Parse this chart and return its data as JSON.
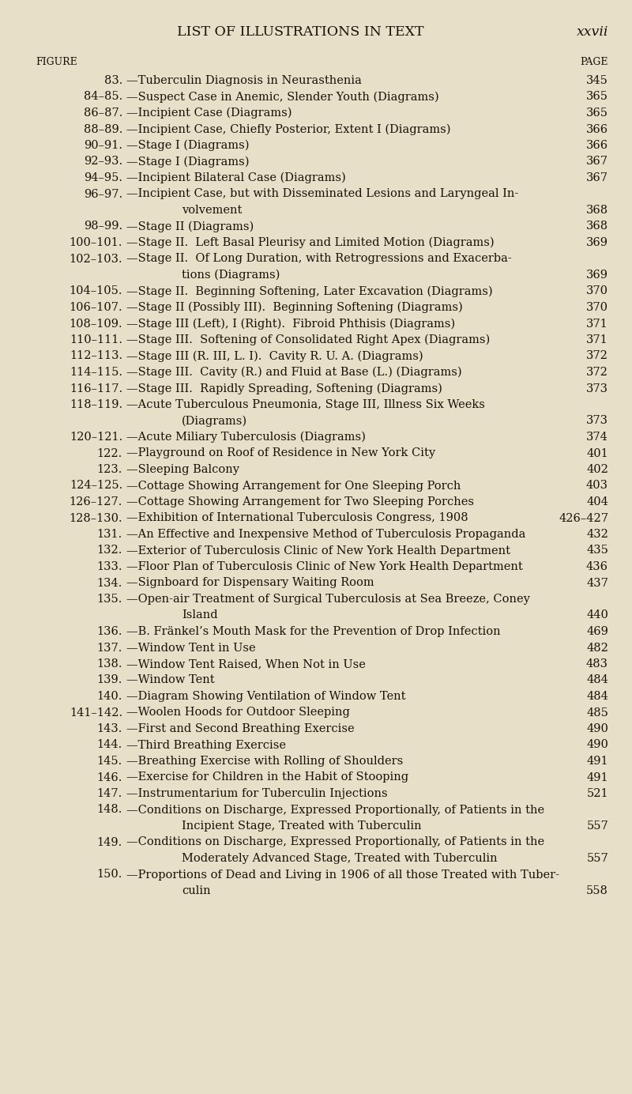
{
  "background_color": "#e8dfc8",
  "title": "LIST OF ILLUSTRATIONS IN TEXT",
  "page_num": "xxvii",
  "col_headers": [
    "FIGURE",
    "PAGE"
  ],
  "entries": [
    {
      "num": "83.",
      "text": "—Tuberculin Diagnosis in Neurasthenia",
      "page": "345",
      "wrap2": null
    },
    {
      "num": "84–85.",
      "text": "—Suspect Case in Anemic, Slender Youth (Diagrams)",
      "page": "365",
      "wrap2": null
    },
    {
      "num": "86–87.",
      "text": "—Incipient Case (Diagrams)",
      "page": "365",
      "wrap2": null
    },
    {
      "num": "88–89.",
      "text": "—Incipient Case, Chiefly Posterior, Extent I (Diagrams)",
      "page": "366",
      "wrap2": null
    },
    {
      "num": "90–91.",
      "text": "—Stage I (Diagrams)",
      "page": "366",
      "wrap2": null
    },
    {
      "num": "92–93.",
      "text": "—Stage I (Diagrams)",
      "page": "367",
      "wrap2": null
    },
    {
      "num": "94–95.",
      "text": "—Incipient Bilateral Case (Diagrams)",
      "page": "367",
      "wrap2": null
    },
    {
      "num": "96–97.",
      "text": "—Incipient Case, but with Disseminated Lesions and Laryngeal In-",
      "page": null,
      "wrap2": "volvement",
      "page2": "368"
    },
    {
      "num": "98–99.",
      "text": "—Stage II (Diagrams)",
      "page": "368",
      "wrap2": null
    },
    {
      "num": "100–101.",
      "text": "—Stage II.  Left Basal Pleurisy and Limited Motion (Diagrams)",
      "page": "369",
      "wrap2": null
    },
    {
      "num": "102–103.",
      "text": "—Stage II.  Of Long Duration, with Retrogressions and Exacerba-",
      "page": null,
      "wrap2": "tions (Diagrams)",
      "page2": "369"
    },
    {
      "num": "104–105.",
      "text": "—Stage II.  Beginning Softening, Later Excavation (Diagrams)",
      "page": "370",
      "wrap2": null
    },
    {
      "num": "106–107.",
      "text": "—Stage II (Possibly III).  Beginning Softening (Diagrams)",
      "page": "370",
      "wrap2": null
    },
    {
      "num": "108–109.",
      "text": "—Stage III (Left), I (Right).  Fibroid Phthisis (Diagrams)",
      "page": "371",
      "wrap2": null
    },
    {
      "num": "110–111.",
      "text": "—Stage III.  Softening of Consolidated Right Apex (Diagrams)",
      "page": "371",
      "wrap2": null
    },
    {
      "num": "112–113.",
      "text": "—Stage III (R. III, L. I).  Cavity R. U. A. (Diagrams)",
      "page": "372",
      "wrap2": null
    },
    {
      "num": "114–115.",
      "text": "—Stage III.  Cavity (R.) and Fluid at Base (L.) (Diagrams)",
      "page": "372",
      "wrap2": null
    },
    {
      "num": "116–117.",
      "text": "—Stage III.  Rapidly Spreading, Softening (Diagrams)",
      "page": "373",
      "wrap2": null
    },
    {
      "num": "118–119.",
      "text": "—Acute Tuberculous Pneumonia, Stage III, Illness Six Weeks",
      "page": null,
      "wrap2": "(Diagrams)",
      "page2": "373"
    },
    {
      "num": "120–121.",
      "text": "—Acute Miliary Tuberculosis (Diagrams)",
      "page": "374",
      "wrap2": null
    },
    {
      "num": "122.",
      "text": "—Playground on Roof of Residence in New York City",
      "page": "401",
      "wrap2": null
    },
    {
      "num": "123.",
      "text": "—Sleeping Balcony",
      "page": "402",
      "wrap2": null
    },
    {
      "num": "124–125.",
      "text": "—Cottage Showing Arrangement for One Sleeping Porch",
      "page": "403",
      "wrap2": null
    },
    {
      "num": "126–127.",
      "text": "—Cottage Showing Arrangement for Two Sleeping Porches",
      "page": "404",
      "wrap2": null
    },
    {
      "num": "128–130.",
      "text": "—Exhibition of International Tuberculosis Congress, 1908",
      "page": "426–427",
      "wrap2": null
    },
    {
      "num": "131.",
      "text": "—An Effective and Inexpensive Method of Tuberculosis Propaganda",
      "page": "432",
      "wrap2": null
    },
    {
      "num": "132.",
      "text": "—Exterior of Tuberculosis Clinic of New York Health Department",
      "page": "435",
      "wrap2": null
    },
    {
      "num": "133.",
      "text": "—Floor Plan of Tuberculosis Clinic of New York Health Department",
      "page": "436",
      "wrap2": null
    },
    {
      "num": "134.",
      "text": "—Signboard for Dispensary Waiting Room",
      "page": "437",
      "wrap2": null
    },
    {
      "num": "135.",
      "text": "—Open-air Treatment of Surgical Tuberculosis at Sea Breeze, Coney",
      "page": null,
      "wrap2": "Island",
      "page2": "440"
    },
    {
      "num": "136.",
      "text": "—B. Fränkel’s Mouth Mask for the Prevention of Drop Infection",
      "page": "469",
      "wrap2": null
    },
    {
      "num": "137.",
      "text": "—Window Tent in Use",
      "page": "482",
      "wrap2": null
    },
    {
      "num": "138.",
      "text": "—Window Tent Raised, When Not in Use",
      "page": "483",
      "wrap2": null
    },
    {
      "num": "139.",
      "text": "—Window Tent",
      "page": "484",
      "wrap2": null
    },
    {
      "num": "140.",
      "text": "—Diagram Showing Ventilation of Window Tent",
      "page": "484",
      "wrap2": null
    },
    {
      "num": "141–142.",
      "text": "—Woolen Hoods for Outdoor Sleeping",
      "page": "485",
      "wrap2": null
    },
    {
      "num": "143.",
      "text": "—First and Second Breathing Exercise",
      "page": "490",
      "wrap2": null
    },
    {
      "num": "144.",
      "text": "—Third Breathing Exercise",
      "page": "490",
      "wrap2": null
    },
    {
      "num": "145.",
      "text": "—Breathing Exercise with Rolling of Shoulders",
      "page": "491",
      "wrap2": null
    },
    {
      "num": "146.",
      "text": "—Exercise for Children in the Habit of Stooping",
      "page": "491",
      "wrap2": null
    },
    {
      "num": "147.",
      "text": "—Instrumentarium for Tuberculin Injections",
      "page": "521",
      "wrap2": null
    },
    {
      "num": "148.",
      "text": "—Conditions on Discharge, Expressed Proportionally, of Patients in the",
      "page": null,
      "wrap2": "Incipient Stage, Treated with Tuberculin",
      "page2": "557"
    },
    {
      "num": "149.",
      "text": "—Conditions on Discharge, Expressed Proportionally, of Patients in the",
      "page": null,
      "wrap2": "Moderately Advanced Stage, Treated with Tuberculin",
      "page2": "557"
    },
    {
      "num": "150.",
      "text": "—Proportions of Dead and Living in 1906 of all those Treated with Tuber-",
      "page": null,
      "wrap2": "culin",
      "page2": "558"
    }
  ],
  "text_color": "#1a1008",
  "font_size": 10.5,
  "title_font_size": 12.5,
  "header_font_size": 9.0,
  "dots": " .  .  .  .  .  .  .  .  ."
}
